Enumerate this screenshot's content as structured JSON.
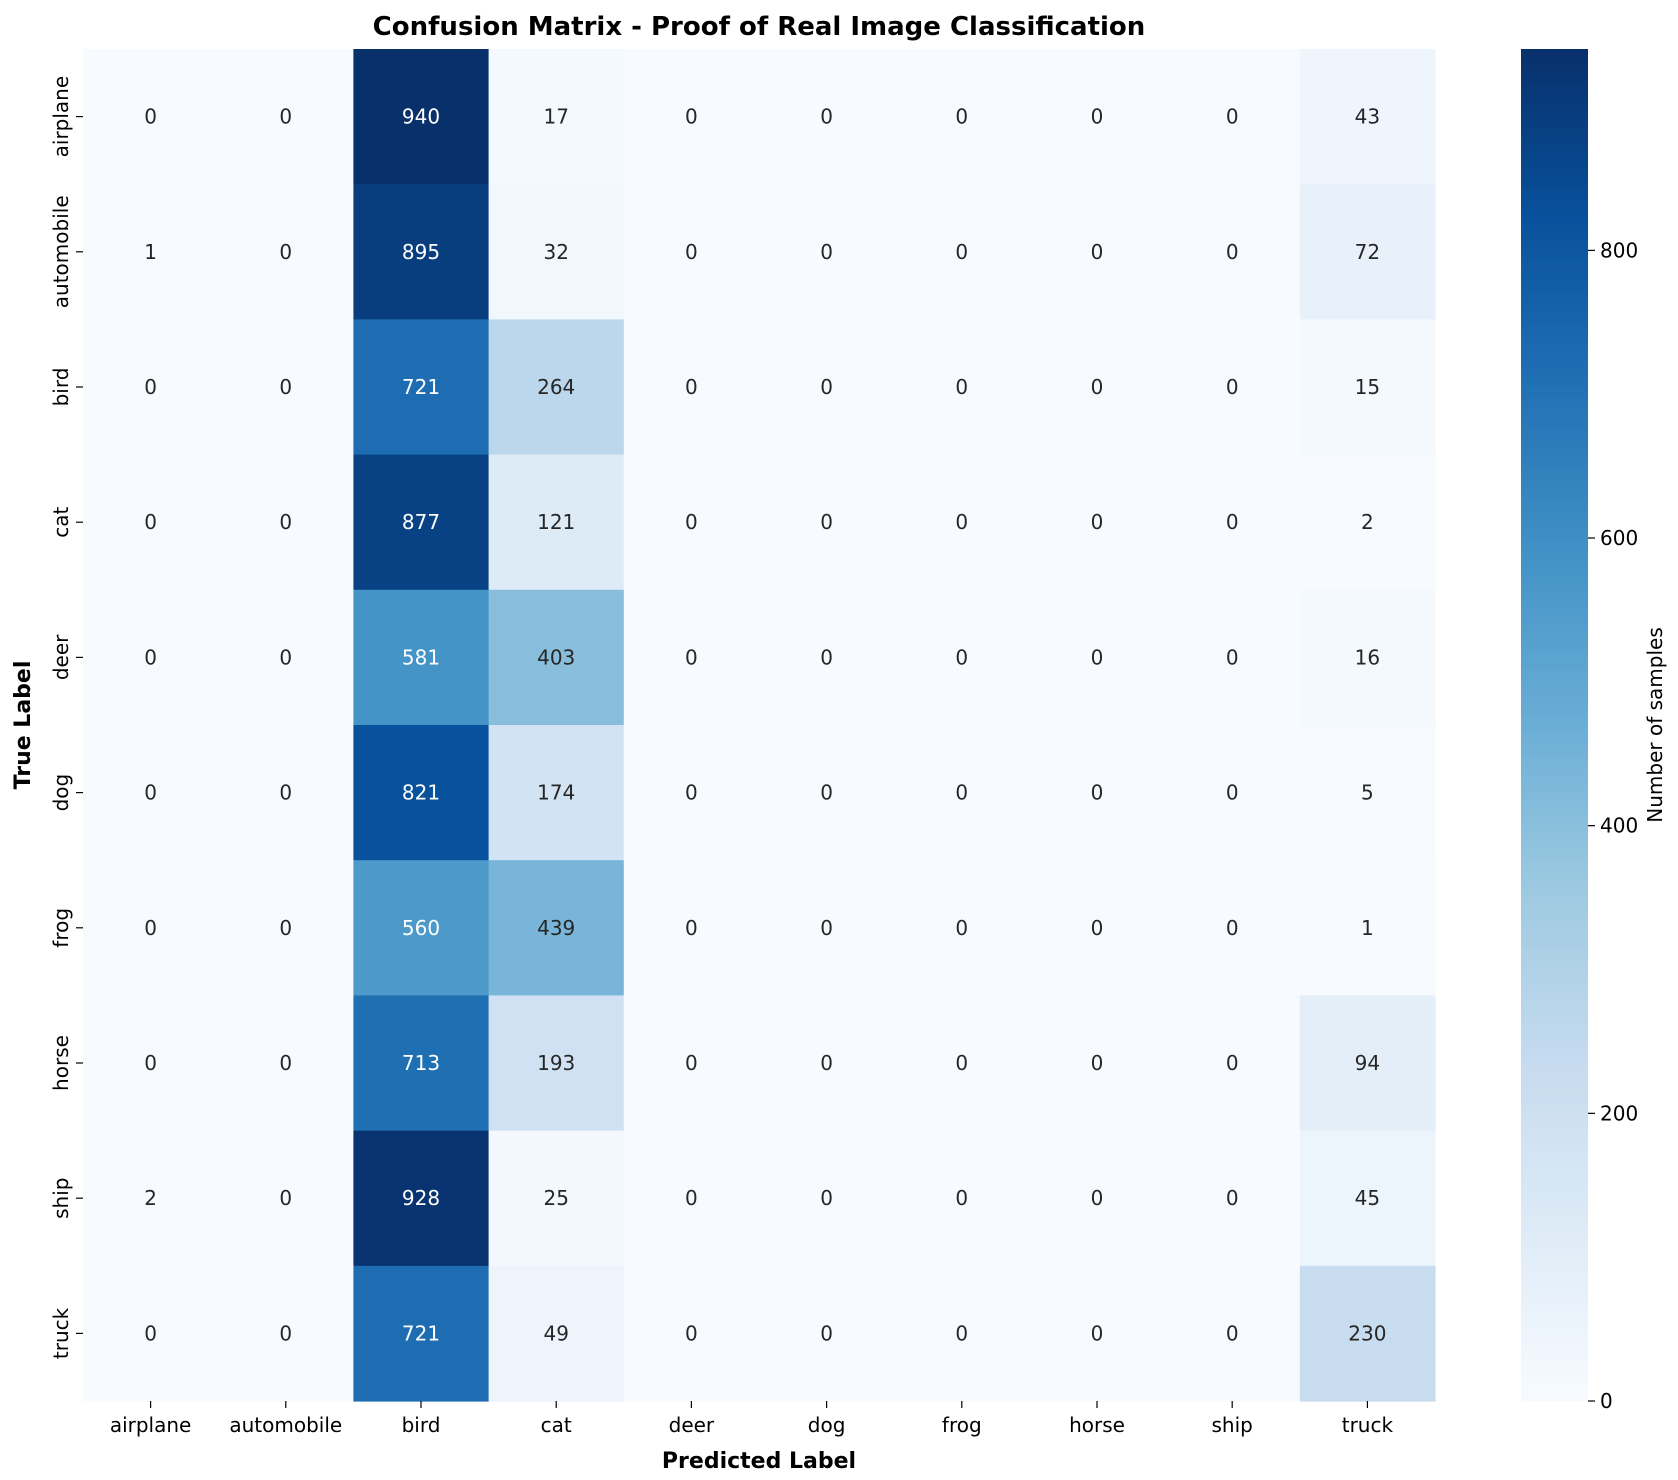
{
  "chart_data": {
    "type": "heatmap",
    "title": "Confusion Matrix - Proof of Real Image Classification",
    "xlabel": "Predicted Label",
    "ylabel": "True Label",
    "x_categories": [
      "airplane",
      "automobile",
      "bird",
      "cat",
      "deer",
      "dog",
      "frog",
      "horse",
      "ship",
      "truck"
    ],
    "y_categories": [
      "airplane",
      "automobile",
      "bird",
      "cat",
      "deer",
      "dog",
      "frog",
      "horse",
      "ship",
      "truck"
    ],
    "values": [
      [
        0,
        0,
        940,
        17,
        0,
        0,
        0,
        0,
        0,
        43
      ],
      [
        1,
        0,
        895,
        32,
        0,
        0,
        0,
        0,
        0,
        72
      ],
      [
        0,
        0,
        721,
        264,
        0,
        0,
        0,
        0,
        0,
        15
      ],
      [
        0,
        0,
        877,
        121,
        0,
        0,
        0,
        0,
        0,
        2
      ],
      [
        0,
        0,
        581,
        403,
        0,
        0,
        0,
        0,
        0,
        16
      ],
      [
        0,
        0,
        821,
        174,
        0,
        0,
        0,
        0,
        0,
        5
      ],
      [
        0,
        0,
        560,
        439,
        0,
        0,
        0,
        0,
        0,
        1
      ],
      [
        0,
        0,
        713,
        193,
        0,
        0,
        0,
        0,
        0,
        94
      ],
      [
        2,
        0,
        928,
        25,
        0,
        0,
        0,
        0,
        0,
        45
      ],
      [
        0,
        0,
        721,
        49,
        0,
        0,
        0,
        0,
        0,
        230
      ]
    ],
    "colorbar": {
      "label": "Number of samples",
      "ticks": [
        0,
        200,
        400,
        600,
        800
      ],
      "range": [
        0,
        940
      ],
      "colormap": "Blues"
    }
  }
}
